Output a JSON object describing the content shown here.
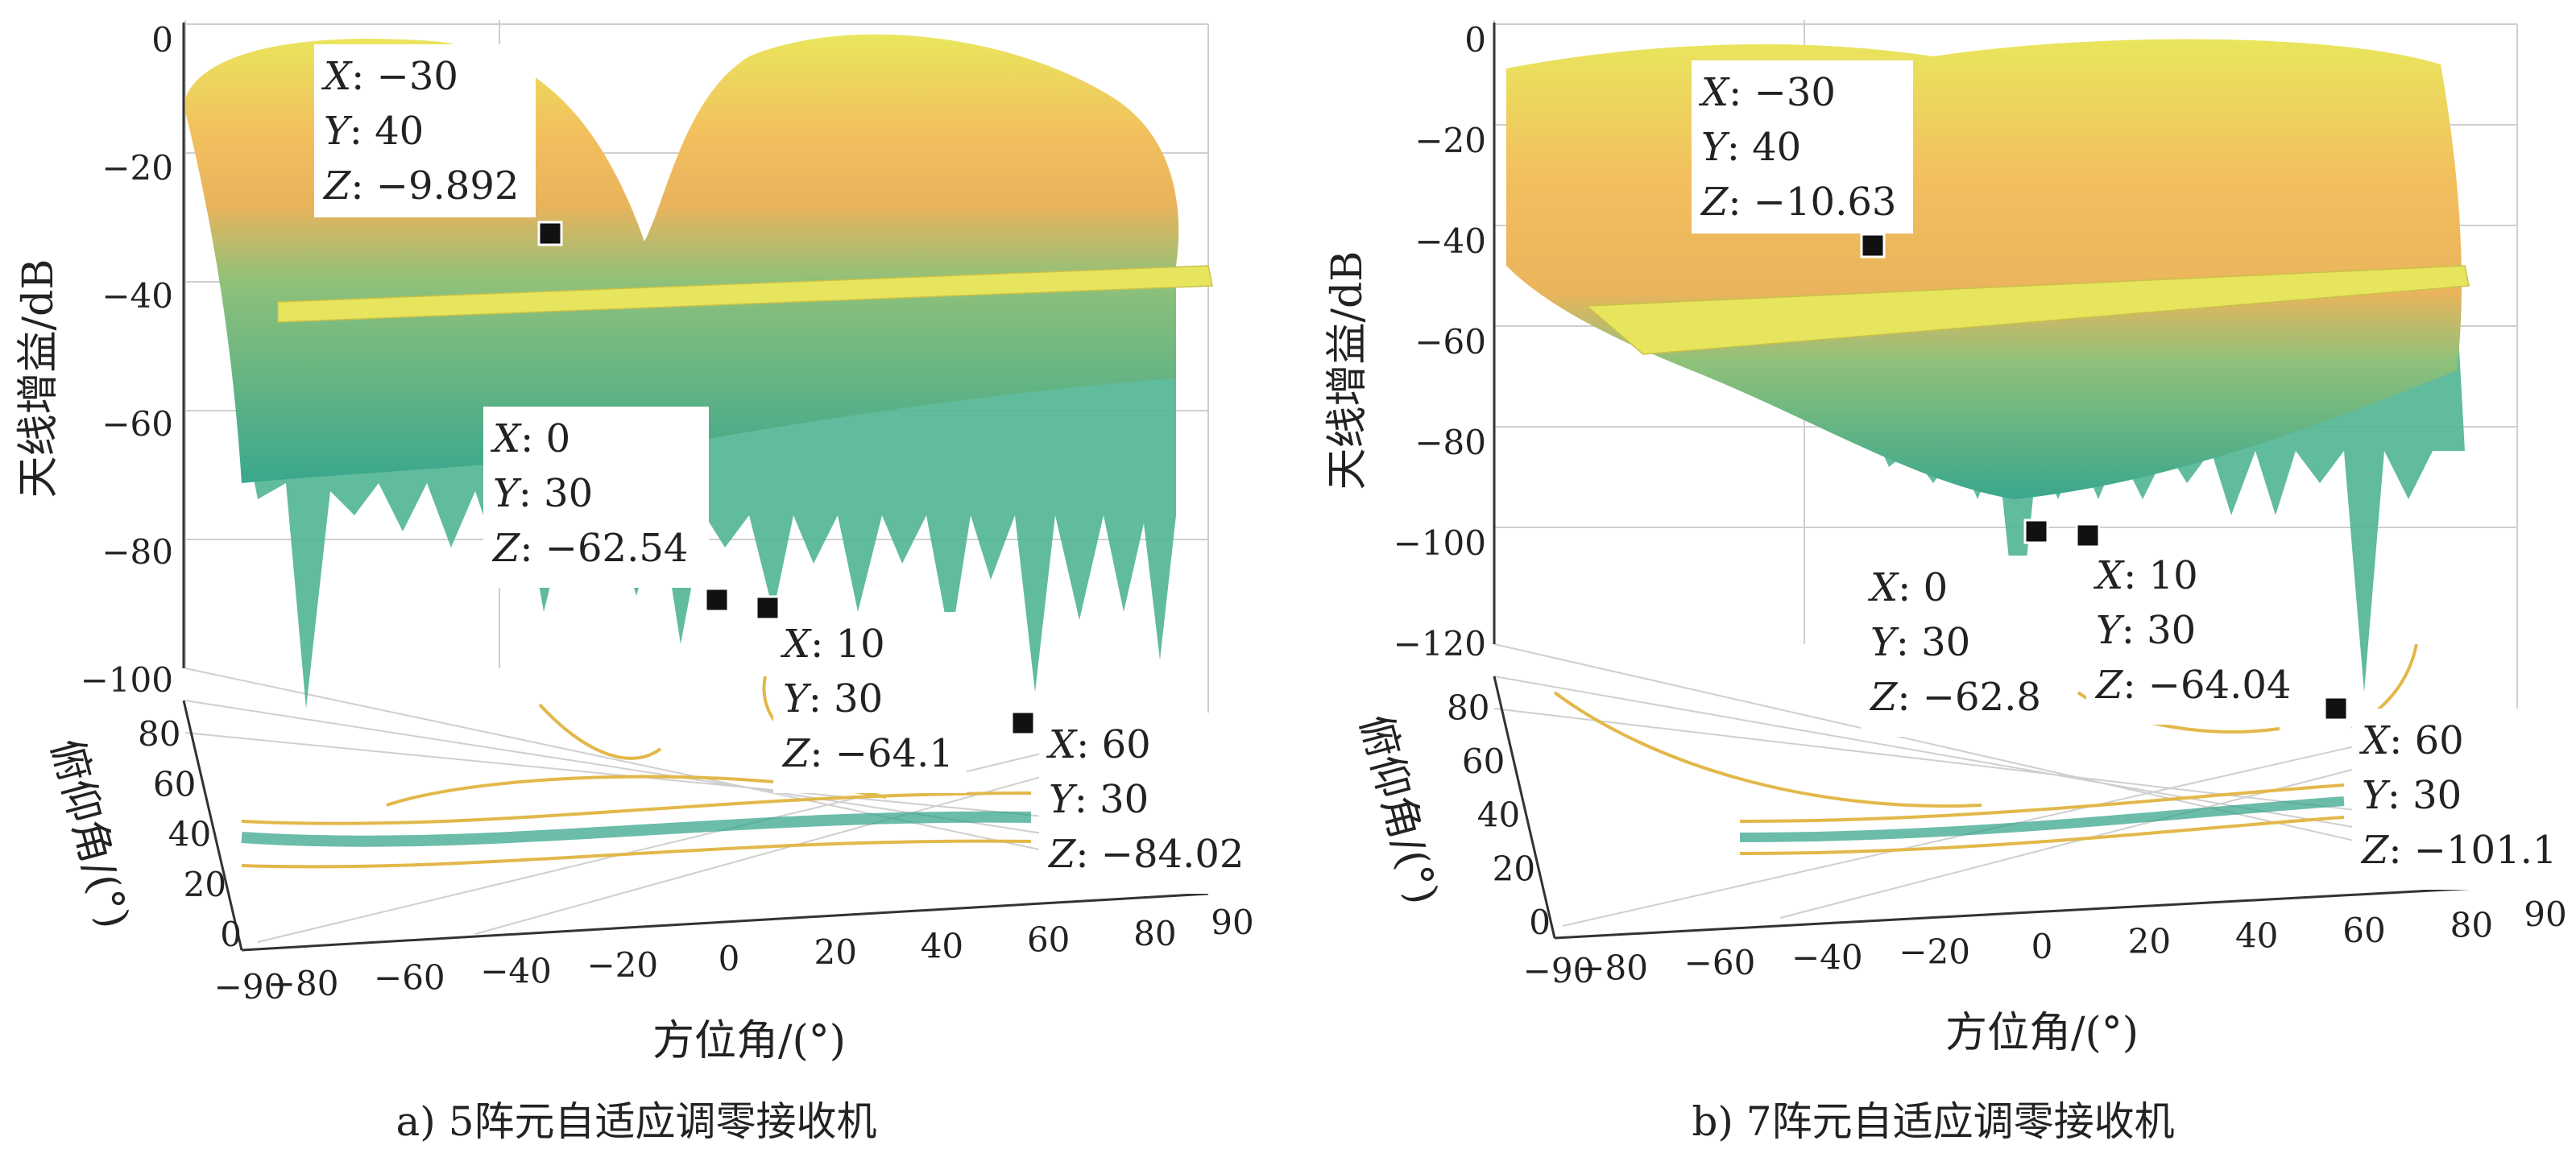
{
  "captions": [
    "a) 5阵元自适应调零接收机",
    "b) 7阵元自适应调零接收机"
  ],
  "chart_data": [
    {
      "type": "surface3d",
      "caption": "a) 5阵元自适应调零接收机",
      "xlabel": "方位角/(°)",
      "ylabel": "俯仰角/(°)",
      "zlabel": "天线增益/dB",
      "xlim": [
        -90,
        90
      ],
      "ylim": [
        0,
        90
      ],
      "zlim": [
        -100,
        0
      ],
      "xticks": [
        "−90",
        "−80",
        "−60",
        "−40",
        "−20",
        "0",
        "20",
        "40",
        "60",
        "80",
        "90"
      ],
      "yticks": [
        "0",
        "20",
        "40",
        "60",
        "80"
      ],
      "zticks": [
        "0",
        "−20",
        "−40",
        "−60",
        "−80",
        "−100"
      ],
      "grid": true,
      "colormap": "summer",
      "datatips": [
        {
          "x": "−30",
          "y": "40",
          "z": "−9.892"
        },
        {
          "x": "0",
          "y": "30",
          "z": "−62.54"
        },
        {
          "x": "10",
          "y": "30",
          "z": "−64.1"
        },
        {
          "x": "60",
          "y": "30",
          "z": "−84.02"
        }
      ]
    },
    {
      "type": "surface3d",
      "caption": "b) 7阵元自适应调零接收机",
      "xlabel": "方位角/(°)",
      "ylabel": "俯仰角/(°)",
      "zlabel": "天线增益/dB",
      "xlim": [
        -90,
        90
      ],
      "ylim": [
        0,
        90
      ],
      "zlim": [
        -120,
        0
      ],
      "xticks": [
        "−90",
        "−80",
        "−60",
        "−40",
        "−20",
        "0",
        "20",
        "40",
        "60",
        "80",
        "90"
      ],
      "yticks": [
        "0",
        "20",
        "40",
        "60",
        "80"
      ],
      "zticks": [
        "0",
        "−20",
        "−40",
        "−60",
        "−80",
        "−100",
        "−120"
      ],
      "grid": true,
      "colormap": "summer",
      "datatips": [
        {
          "x": "−30",
          "y": "40",
          "z": "−10.63"
        },
        {
          "x": "0",
          "y": "30",
          "z": "−62.8"
        },
        {
          "x": "10",
          "y": "30",
          "z": "−64.04"
        },
        {
          "x": "60",
          "y": "30",
          "z": "−101.1"
        }
      ]
    }
  ],
  "colors": {
    "surface_top": "#e6e35c",
    "surface_mid": "#f0b45a",
    "surface_low": "#4fb591",
    "contour": "#e2b84a",
    "contour_null": "#2e9f86",
    "grid": "#c8c8c8",
    "marker": "#111111"
  }
}
